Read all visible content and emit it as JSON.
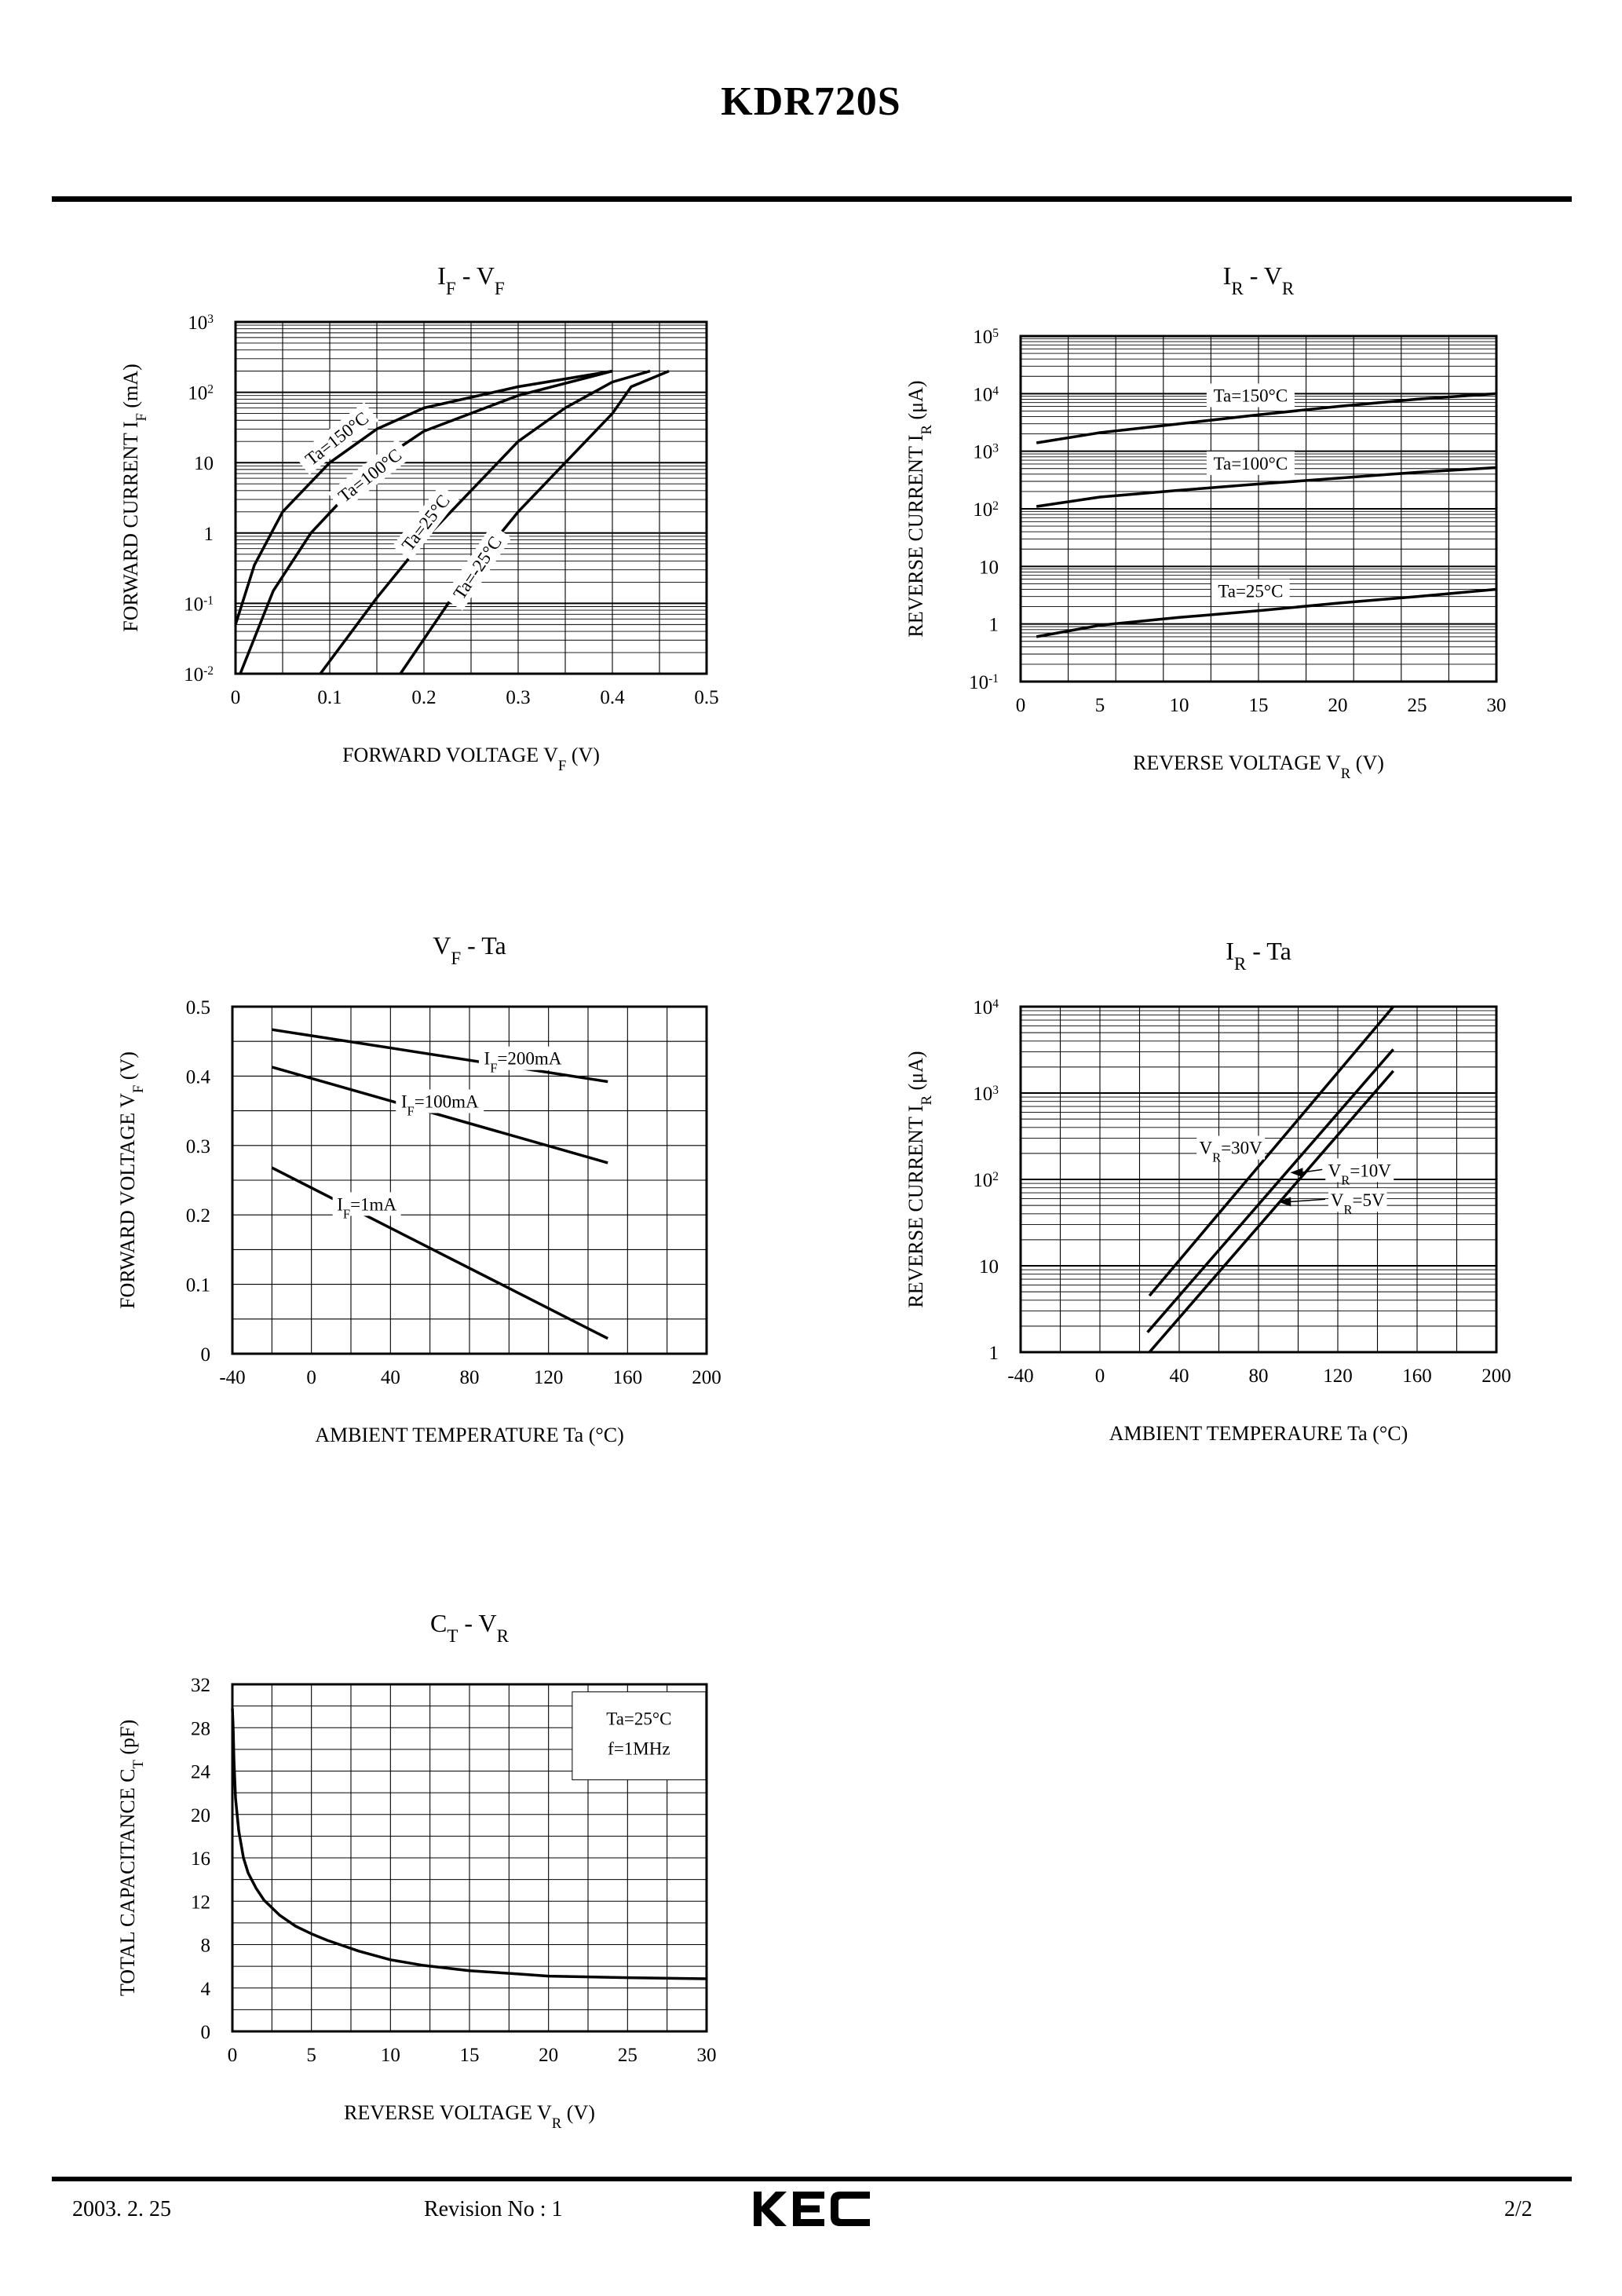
{
  "header": {
    "part_number": "KDR720S"
  },
  "footer": {
    "date": "2003. 2. 25",
    "revision": "Revision No : 1",
    "brand": "KEC",
    "page": "2/2"
  },
  "chart_data": [
    {
      "id": "if-vf",
      "type": "line",
      "title": {
        "main1": "I",
        "sub1": "F",
        "sep": "-",
        "main2": "V",
        "sub2": "F"
      },
      "xlabel": {
        "pre": "FORWARD VOLTAGE V",
        "sub": "F",
        "post": "  (V)"
      },
      "ylabel": {
        "pre": "FORWARD CURRENT I",
        "sub": "F",
        "post": "  (mA)"
      },
      "xscale": "linear",
      "yscale": "log",
      "xlim": [
        0,
        0.5
      ],
      "ylim": [
        0.01,
        1000
      ],
      "xticks": [
        {
          "v": 0,
          "t": "0"
        },
        {
          "v": 0.1,
          "t": "0.1"
        },
        {
          "v": 0.2,
          "t": "0.2"
        },
        {
          "v": 0.3,
          "t": "0.3"
        },
        {
          "v": 0.4,
          "t": "0.4"
        },
        {
          "v": 0.5,
          "t": "0.5"
        }
      ],
      "yticks": [
        {
          "v": 0.01,
          "t": "10",
          "sup": "-2"
        },
        {
          "v": 0.1,
          "t": "10",
          "sup": "-1"
        },
        {
          "v": 1,
          "t": "1"
        },
        {
          "v": 10,
          "t": "10"
        },
        {
          "v": 100,
          "t": "10",
          "sup": "2"
        },
        {
          "v": 1000,
          "t": "10",
          "sup": "3"
        }
      ],
      "series": [
        {
          "name": "Ta=150°C",
          "points": [
            [
              0,
              0.05
            ],
            [
              0.02,
              0.35
            ],
            [
              0.05,
              2
            ],
            [
              0.1,
              10
            ],
            [
              0.15,
              30
            ],
            [
              0.2,
              60
            ],
            [
              0.3,
              120
            ],
            [
              0.4,
              200
            ]
          ]
        },
        {
          "name": "Ta=100°C",
          "points": [
            [
              0.005,
              0.01
            ],
            [
              0.04,
              0.15
            ],
            [
              0.08,
              1
            ],
            [
              0.15,
              10
            ],
            [
              0.2,
              28
            ],
            [
              0.3,
              90
            ],
            [
              0.4,
              200
            ]
          ]
        },
        {
          "name": "Ta=25°C",
          "points": [
            [
              0.09,
              0.01
            ],
            [
              0.15,
              0.12
            ],
            [
              0.2,
              0.8
            ],
            [
              0.3,
              20
            ],
            [
              0.35,
              60
            ],
            [
              0.4,
              140
            ],
            [
              0.44,
              200
            ]
          ]
        },
        {
          "name": "Ta=-25°C",
          "points": [
            [
              0.175,
              0.01
            ],
            [
              0.25,
              0.3
            ],
            [
              0.3,
              2
            ],
            [
              0.35,
              10
            ],
            [
              0.4,
              50
            ],
            [
              0.42,
              120
            ],
            [
              0.46,
              200
            ]
          ]
        }
      ],
      "annotations": [
        {
          "text": "Ta=150°C",
          "x": 0.11,
          "y": 20,
          "rot": -38
        },
        {
          "text": "Ta=100°C",
          "x": 0.145,
          "y": 6,
          "rot": -38
        },
        {
          "text": "Ta=25°C",
          "x": 0.205,
          "y": 1.3,
          "rot": -52
        },
        {
          "text": "Ta=-25°C",
          "x": 0.26,
          "y": 0.3,
          "rot": -56
        }
      ],
      "grid": "log-minor"
    },
    {
      "id": "ir-vr",
      "type": "line",
      "title": {
        "main1": "I",
        "sub1": "R",
        "sep": "-",
        "main2": "V",
        "sub2": "R"
      },
      "xlabel": {
        "pre": "REVERSE VOLTAGE V",
        "sub": "R",
        "post": "  (V)"
      },
      "ylabel": {
        "pre": "REVERSE CURRENT I",
        "sub": "R",
        "post": "  (μA)"
      },
      "xscale": "linear",
      "yscale": "log",
      "xlim": [
        0,
        30
      ],
      "ylim": [
        0.1,
        100000
      ],
      "xticks": [
        {
          "v": 0,
          "t": "0"
        },
        {
          "v": 5,
          "t": "5"
        },
        {
          "v": 10,
          "t": "10"
        },
        {
          "v": 15,
          "t": "15"
        },
        {
          "v": 20,
          "t": "20"
        },
        {
          "v": 25,
          "t": "25"
        },
        {
          "v": 30,
          "t": "30"
        }
      ],
      "yticks": [
        {
          "v": 0.1,
          "t": "10",
          "sup": "-1"
        },
        {
          "v": 1,
          "t": "1"
        },
        {
          "v": 10,
          "t": "10"
        },
        {
          "v": 100,
          "t": "10",
          "sup": "2"
        },
        {
          "v": 1000,
          "t": "10",
          "sup": "3"
        },
        {
          "v": 10000,
          "t": "10",
          "sup": "4"
        },
        {
          "v": 100000,
          "t": "10",
          "sup": "5"
        }
      ],
      "series": [
        {
          "name": "Ta=150°C",
          "points": [
            [
              1,
              1400
            ],
            [
              5,
              2100
            ],
            [
              10,
              3000
            ],
            [
              15,
              4300
            ],
            [
              20,
              6000
            ],
            [
              25,
              8000
            ],
            [
              30,
              10000
            ]
          ]
        },
        {
          "name": "Ta=100°C",
          "points": [
            [
              1,
              110
            ],
            [
              5,
              160
            ],
            [
              10,
              210
            ],
            [
              15,
              270
            ],
            [
              20,
              340
            ],
            [
              25,
              430
            ],
            [
              30,
              520
            ]
          ]
        },
        {
          "name": "Ta=25°C",
          "points": [
            [
              1,
              0.6
            ],
            [
              5,
              0.95
            ],
            [
              10,
              1.3
            ],
            [
              15,
              1.7
            ],
            [
              20,
              2.3
            ],
            [
              25,
              3
            ],
            [
              30,
              4
            ]
          ]
        }
      ],
      "annotations": [
        {
          "text": "Ta=150°C",
          "x": 14.5,
          "y": 8000,
          "rot": 0,
          "box": true
        },
        {
          "text": "Ta=100°C",
          "x": 14.5,
          "y": 530,
          "rot": 0,
          "box": true
        },
        {
          "text": "Ta=25°C",
          "x": 14.5,
          "y": 3.2,
          "rot": 0,
          "box": true
        }
      ],
      "grid": "log-minor"
    },
    {
      "id": "vf-ta",
      "type": "line",
      "title": {
        "main1": "V",
        "sub1": "F",
        "sep": "-",
        "main2": "Ta",
        "sub2": ""
      },
      "xlabel": {
        "pre": "AMBIENT TEMPERATURE Ta  (°C)",
        "sub": "",
        "post": ""
      },
      "ylabel": {
        "pre": "FORWARD VOLTAGE V",
        "sub": "F",
        "post": "  (V)"
      },
      "xscale": "linear",
      "yscale": "linear",
      "xlim": [
        -40,
        200
      ],
      "ylim": [
        0,
        0.5
      ],
      "xticks": [
        {
          "v": -40,
          "t": "-40"
        },
        {
          "v": 0,
          "t": "0"
        },
        {
          "v": 40,
          "t": "40"
        },
        {
          "v": 80,
          "t": "80"
        },
        {
          "v": 120,
          "t": "120"
        },
        {
          "v": 160,
          "t": "160"
        },
        {
          "v": 200,
          "t": "200"
        }
      ],
      "yticks": [
        {
          "v": 0,
          "t": "0"
        },
        {
          "v": 0.1,
          "t": "0.1"
        },
        {
          "v": 0.2,
          "t": "0.2"
        },
        {
          "v": 0.3,
          "t": "0.3"
        },
        {
          "v": 0.4,
          "t": "0.4"
        },
        {
          "v": 0.5,
          "t": "0.5"
        }
      ],
      "xgrid": [
        -40,
        -20,
        0,
        20,
        40,
        60,
        80,
        100,
        120,
        140,
        160,
        180,
        200
      ],
      "ygrid": [
        0,
        0.05,
        0.1,
        0.15,
        0.2,
        0.25,
        0.3,
        0.35,
        0.4,
        0.45,
        0.5
      ],
      "series": [
        {
          "name": "IF=200mA",
          "points": [
            [
              -20,
              0.467
            ],
            [
              150,
              0.392
            ]
          ]
        },
        {
          "name": "IF=100mA",
          "points": [
            [
              -20,
              0.413
            ],
            [
              150,
              0.275
            ]
          ]
        },
        {
          "name": "IF=1mA",
          "points": [
            [
              -20,
              0.268
            ],
            [
              150,
              0.022
            ]
          ]
        }
      ],
      "annotations": [
        {
          "pre": "I",
          "sub": "F",
          "post": "=200mA",
          "x": 107,
          "y": 0.42,
          "rot": 0,
          "box": true
        },
        {
          "pre": "I",
          "sub": "F",
          "post": "=100mA",
          "x": 65,
          "y": 0.358,
          "rot": 0,
          "box": true
        },
        {
          "pre": "I",
          "sub": "F",
          "post": "=1mA",
          "x": 28,
          "y": 0.21,
          "rot": 0,
          "box": true
        }
      ],
      "grid": "linear"
    },
    {
      "id": "ir-ta",
      "type": "line",
      "title": {
        "main1": "I",
        "sub1": "R",
        "sep": "-",
        "main2": "Ta",
        "sub2": ""
      },
      "xlabel": {
        "pre": "AMBIENT TEMPERAURE Ta  (°C)",
        "sub": "",
        "post": ""
      },
      "ylabel": {
        "pre": "REVERSE CURRENT I",
        "sub": "R",
        "post": "  (μA)"
      },
      "xscale": "linear",
      "yscale": "log",
      "xlim": [
        -40,
        200
      ],
      "ylim": [
        1,
        10000
      ],
      "xticks": [
        {
          "v": -40,
          "t": "-40"
        },
        {
          "v": 0,
          "t": "0"
        },
        {
          "v": 40,
          "t": "40"
        },
        {
          "v": 80,
          "t": "80"
        },
        {
          "v": 120,
          "t": "120"
        },
        {
          "v": 160,
          "t": "160"
        },
        {
          "v": 200,
          "t": "200"
        }
      ],
      "yticks": [
        {
          "v": 1,
          "t": "1"
        },
        {
          "v": 10,
          "t": "10"
        },
        {
          "v": 100,
          "t": "10",
          "sup": "2"
        },
        {
          "v": 1000,
          "t": "10",
          "sup": "3"
        },
        {
          "v": 10000,
          "t": "10",
          "sup": "4"
        }
      ],
      "xgrid": [
        -40,
        -20,
        0,
        20,
        40,
        60,
        80,
        100,
        120,
        140,
        160,
        180,
        200
      ],
      "series": [
        {
          "name": "VR=30V",
          "points": [
            [
              25,
              4.5
            ],
            [
              148,
              10000
            ]
          ]
        },
        {
          "name": "VR=10V",
          "points": [
            [
              24,
              1.7
            ],
            [
              148,
              3200
            ]
          ]
        },
        {
          "name": "VR=5V",
          "points": [
            [
              25,
              1
            ],
            [
              148,
              1800
            ]
          ]
        }
      ],
      "annotations": [
        {
          "pre": "V",
          "sub": "R",
          "post": "=30V",
          "x": 66,
          "y": 210,
          "rot": 0,
          "box": true
        },
        {
          "pre": "V",
          "sub": "R",
          "post": "=10V",
          "x": 131,
          "y": 115,
          "rot": 0,
          "box": true,
          "arrow_to": [
            96,
            120
          ]
        },
        {
          "pre": "V",
          "sub": "R",
          "post": "=5V",
          "x": 130,
          "y": 52,
          "rot": 0,
          "box": true,
          "arrow_to": [
            90,
            55
          ]
        }
      ],
      "grid": "log-minor"
    },
    {
      "id": "ct-vr",
      "type": "line",
      "title": {
        "main1": "C",
        "sub1": "T",
        "sep": "-",
        "main2": "V",
        "sub2": "R"
      },
      "xlabel": {
        "pre": "REVERSE VOLTAGE V",
        "sub": "R",
        "post": "  (V)"
      },
      "ylabel": {
        "pre": "TOTAL CAPACITANCE C",
        "sub": "T",
        "post": "  (pF)"
      },
      "xscale": "linear",
      "yscale": "linear",
      "xlim": [
        0,
        30
      ],
      "ylim": [
        0,
        32
      ],
      "xticks": [
        {
          "v": 0,
          "t": "0"
        },
        {
          "v": 5,
          "t": "5"
        },
        {
          "v": 10,
          "t": "10"
        },
        {
          "v": 15,
          "t": "15"
        },
        {
          "v": 20,
          "t": "20"
        },
        {
          "v": 25,
          "t": "25"
        },
        {
          "v": 30,
          "t": "30"
        }
      ],
      "yticks": [
        {
          "v": 0,
          "t": "0"
        },
        {
          "v": 4,
          "t": "4"
        },
        {
          "v": 8,
          "t": "8"
        },
        {
          "v": 12,
          "t": "12"
        },
        {
          "v": 16,
          "t": "16"
        },
        {
          "v": 20,
          "t": "20"
        },
        {
          "v": 24,
          "t": "24"
        },
        {
          "v": 28,
          "t": "28"
        },
        {
          "v": 32,
          "t": "32"
        }
      ],
      "xgrid": [
        0,
        2.5,
        5,
        7.5,
        10,
        12.5,
        15,
        17.5,
        20,
        22.5,
        25,
        27.5,
        30
      ],
      "ygrid": [
        0,
        2,
        4,
        6,
        8,
        10,
        12,
        14,
        16,
        18,
        20,
        22,
        24,
        26,
        28,
        30,
        32
      ],
      "series": [
        {
          "name": "CT",
          "points": [
            [
              0,
              29.8
            ],
            [
              0.05,
              28
            ],
            [
              0.1,
              25
            ],
            [
              0.2,
              21.5
            ],
            [
              0.4,
              18.5
            ],
            [
              0.7,
              16
            ],
            [
              1,
              14.6
            ],
            [
              1.5,
              13.2
            ],
            [
              2,
              12.1
            ],
            [
              3,
              10.7
            ],
            [
              4,
              9.7
            ],
            [
              5,
              9
            ],
            [
              6,
              8.4
            ],
            [
              7,
              7.9
            ],
            [
              8,
              7.4
            ],
            [
              10,
              6.6
            ],
            [
              12,
              6.1
            ],
            [
              15,
              5.6
            ],
            [
              18,
              5.3
            ],
            [
              20,
              5.1
            ],
            [
              25,
              4.95
            ],
            [
              30,
              4.85
            ]
          ]
        }
      ],
      "legend_box": {
        "line1": "Ta=25°C",
        "line2": "f=1MHz"
      },
      "grid": "linear"
    }
  ]
}
